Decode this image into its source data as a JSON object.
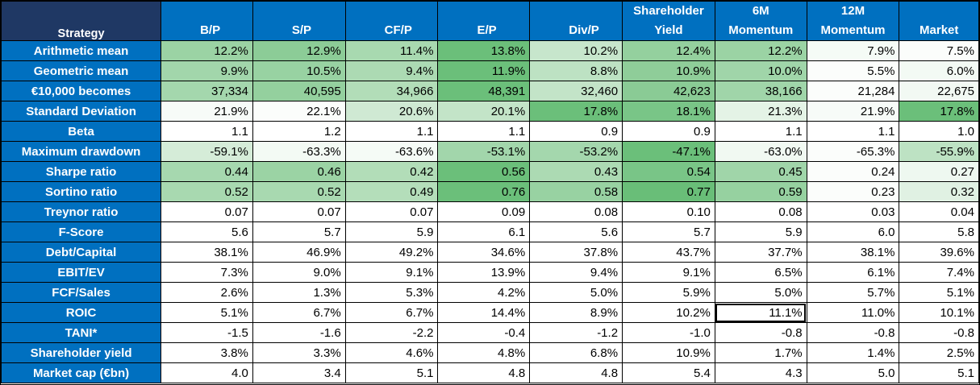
{
  "table": {
    "corner_label": "Strategy",
    "columns": [
      "B/P",
      "S/P",
      "CF/P",
      "E/P",
      "Div/P",
      "Shareholder\nYield",
      "6M\nMomentum",
      "12M\nMomentum",
      "Market"
    ],
    "rows": [
      {
        "label": "Arithmetic mean",
        "values": [
          "12.2%",
          "12.9%",
          "11.4%",
          "13.8%",
          "10.2%",
          "12.4%",
          "12.2%",
          "7.9%",
          "7.5%"
        ],
        "fills": [
          "#9bd3a4",
          "#8ccc97",
          "#a8d9b0",
          "#6bbf7a",
          "#c7e6cc",
          "#94d09e",
          "#9bd3a4",
          "#f5fbf6",
          "#fbfdfb"
        ]
      },
      {
        "label": "Geometric mean",
        "values": [
          "9.9%",
          "10.5%",
          "9.4%",
          "11.9%",
          "8.8%",
          "10.9%",
          "10.0%",
          "5.5%",
          "6.0%"
        ],
        "fills": [
          "#a2d6ab",
          "#98d2a2",
          "#acdab3",
          "#6bbf7a",
          "#bde2c3",
          "#8fcd99",
          "#a0d5a9",
          "#fbfdfb",
          "#f3faf4"
        ]
      },
      {
        "label": "€10,000 becomes",
        "values": [
          "37,334",
          "40,595",
          "34,966",
          "48,391",
          "32,460",
          "42,623",
          "38,166",
          "21,284",
          "22,675"
        ],
        "fills": [
          "#a4d7ad",
          "#94d09e",
          "#b2ddb8",
          "#6bbf7a",
          "#c3e4c8",
          "#8acb95",
          "#a0d5a9",
          "#fbfdfb",
          "#f2f9f3"
        ]
      },
      {
        "label": "Standard Deviation",
        "values": [
          "21.9%",
          "22.1%",
          "20.6%",
          "20.1%",
          "17.8%",
          "18.1%",
          "21.3%",
          "21.9%",
          "17.8%"
        ],
        "fills": [
          "#f7fbf8",
          "#fbfdfb",
          "#cfe9d3",
          "#c3e4c8",
          "#6bbf7a",
          "#79c587",
          "#e4f3e6",
          "#f7fbf8",
          "#6bbf7a"
        ]
      },
      {
        "label": "Beta",
        "values": [
          "1.1",
          "1.2",
          "1.1",
          "1.1",
          "0.9",
          "0.9",
          "1.1",
          "1.1",
          "1.0"
        ],
        "fills": [
          "#ffffff",
          "#ffffff",
          "#ffffff",
          "#ffffff",
          "#ffffff",
          "#ffffff",
          "#ffffff",
          "#ffffff",
          "#ffffff"
        ]
      },
      {
        "label": "Maximum drawdown",
        "values": [
          "-59.1%",
          "-63.3%",
          "-63.6%",
          "-53.1%",
          "-53.2%",
          "-47.1%",
          "-63.0%",
          "-65.3%",
          "-55.9%"
        ],
        "fills": [
          "#d5ecd8",
          "#f3faf4",
          "#f5fbf6",
          "#a2d6ab",
          "#a4d7ad",
          "#6bbf7a",
          "#f1f9f2",
          "#fbfdfb",
          "#bde2c3"
        ]
      },
      {
        "label": "Sharpe ratio",
        "values": [
          "0.44",
          "0.46",
          "0.42",
          "0.56",
          "0.43",
          "0.54",
          "0.45",
          "0.24",
          "0.27"
        ],
        "fills": [
          "#a6d8af",
          "#9bd3a4",
          "#b2ddb8",
          "#6bbf7a",
          "#acdab3",
          "#79c587",
          "#a0d5a9",
          "#fbfdfb",
          "#eef8f0"
        ]
      },
      {
        "label": "Sortino ratio",
        "values": [
          "0.52",
          "0.52",
          "0.49",
          "0.76",
          "0.58",
          "0.77",
          "0.59",
          "0.23",
          "0.32"
        ],
        "fills": [
          "#a8d9b0",
          "#a8d9b0",
          "#b4deba",
          "#6bbf7a",
          "#98d2a2",
          "#69be78",
          "#96d1a0",
          "#fbfdfb",
          "#e0f1e3"
        ]
      },
      {
        "label": "Treynor ratio",
        "values": [
          "0.07",
          "0.07",
          "0.07",
          "0.09",
          "0.08",
          "0.10",
          "0.08",
          "0.03",
          "0.04"
        ],
        "fills": [
          "#ffffff",
          "#ffffff",
          "#ffffff",
          "#ffffff",
          "#ffffff",
          "#ffffff",
          "#ffffff",
          "#ffffff",
          "#ffffff"
        ]
      },
      {
        "label": "F-Score",
        "values": [
          "5.6",
          "5.7",
          "5.9",
          "6.1",
          "5.6",
          "5.7",
          "5.9",
          "6.0",
          "5.8"
        ],
        "fills": [
          "#ffffff",
          "#ffffff",
          "#ffffff",
          "#ffffff",
          "#ffffff",
          "#ffffff",
          "#ffffff",
          "#ffffff",
          "#ffffff"
        ]
      },
      {
        "label": "Debt/Capital",
        "values": [
          "38.1%",
          "46.9%",
          "49.2%",
          "34.6%",
          "37.8%",
          "43.7%",
          "37.7%",
          "38.1%",
          "39.6%"
        ],
        "fills": [
          "#ffffff",
          "#ffffff",
          "#ffffff",
          "#ffffff",
          "#ffffff",
          "#ffffff",
          "#ffffff",
          "#ffffff",
          "#ffffff"
        ]
      },
      {
        "label": "EBIT/EV",
        "values": [
          "7.3%",
          "9.0%",
          "9.1%",
          "13.9%",
          "9.4%",
          "9.1%",
          "6.5%",
          "6.1%",
          "7.4%"
        ],
        "fills": [
          "#ffffff",
          "#ffffff",
          "#ffffff",
          "#ffffff",
          "#ffffff",
          "#ffffff",
          "#ffffff",
          "#ffffff",
          "#ffffff"
        ]
      },
      {
        "label": "FCF/Sales",
        "values": [
          "2.6%",
          "1.3%",
          "5.3%",
          "4.2%",
          "5.0%",
          "5.9%",
          "5.0%",
          "5.7%",
          "5.1%"
        ],
        "fills": [
          "#ffffff",
          "#ffffff",
          "#ffffff",
          "#ffffff",
          "#ffffff",
          "#ffffff",
          "#ffffff",
          "#ffffff",
          "#ffffff"
        ]
      },
      {
        "label": "ROIC",
        "values": [
          "5.1%",
          "6.7%",
          "6.7%",
          "14.4%",
          "8.9%",
          "10.2%",
          "11.1%",
          "11.0%",
          "10.1%"
        ],
        "fills": [
          "#ffffff",
          "#ffffff",
          "#ffffff",
          "#ffffff",
          "#ffffff",
          "#ffffff",
          "#ffffff",
          "#ffffff",
          "#ffffff"
        ]
      },
      {
        "label": "TANI*",
        "values": [
          "-1.5",
          "-1.6",
          "-2.2",
          "-0.4",
          "-1.2",
          "-1.0",
          "-0.8",
          "-0.8",
          "-0.8"
        ],
        "fills": [
          "#ffffff",
          "#ffffff",
          "#ffffff",
          "#ffffff",
          "#ffffff",
          "#ffffff",
          "#ffffff",
          "#ffffff",
          "#ffffff"
        ]
      },
      {
        "label": "Shareholder yield",
        "values": [
          "3.8%",
          "3.3%",
          "4.6%",
          "4.8%",
          "6.8%",
          "10.9%",
          "1.7%",
          "1.4%",
          "2.5%"
        ],
        "fills": [
          "#ffffff",
          "#ffffff",
          "#ffffff",
          "#ffffff",
          "#ffffff",
          "#ffffff",
          "#ffffff",
          "#ffffff",
          "#ffffff"
        ]
      },
      {
        "label": "Market cap (€bn)",
        "values": [
          "4.0",
          "3.4",
          "5.1",
          "4.8",
          "4.8",
          "5.4",
          "4.3",
          "5.0",
          "5.1"
        ],
        "fills": [
          "#ffffff",
          "#ffffff",
          "#ffffff",
          "#ffffff",
          "#ffffff",
          "#ffffff",
          "#ffffff",
          "#ffffff",
          "#ffffff"
        ]
      }
    ],
    "selected_cell": {
      "row": 13,
      "col": 6
    }
  }
}
